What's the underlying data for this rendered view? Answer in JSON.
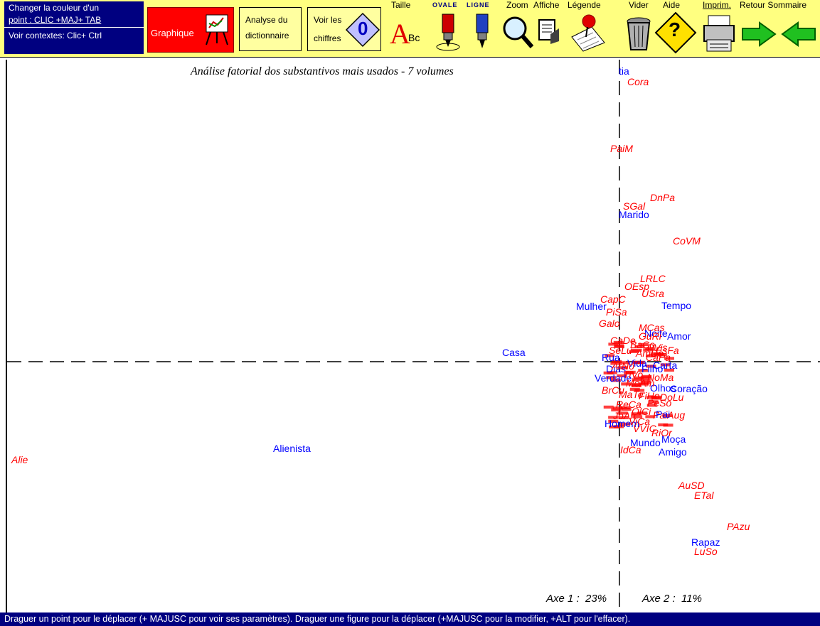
{
  "info_box": {
    "line1": "Changer la couleur d'un",
    "line2": "point : CLIC +MAJ+ TAB",
    "line3": "Voir contextes: Clic+ Ctrl"
  },
  "toolbar": {
    "graphique": "Graphique",
    "analyse_line1": "Analyse du",
    "analyse_line2": "dictionnaire",
    "voir_line1": "Voir les",
    "voir_line2": "chiffres",
    "voir_icon_text": "0",
    "taille": "Taille",
    "taille_icon_a": "A",
    "taille_icon_bc": "Bc",
    "ovale": "OVALE",
    "ligne": "LIGNE",
    "zoom": "Zoom",
    "affiche": "Affiche",
    "legende": "Légende",
    "vider": "Vider",
    "aide": "Aide",
    "aide_icon_text": "?",
    "imprim": "Imprim.",
    "retour_sommaire": "Retour Sommaire"
  },
  "plot": {
    "title": "Análise fatorial dos substantivos mais usados - 7 volumes",
    "axe1": "Axe 1 :  23%",
    "axe2": "Axe 2 :  11%"
  },
  "colors": {
    "red": "#ff0000",
    "blue": "#0000ff",
    "navy": "#000080",
    "toolbar": "#ffff80"
  },
  "status": "Draguer un point pour le déplacer (+ MAJUSC  pour voir ses paramètres). Draguer une figure pour la déplacer (+MAJUSC pour la modifier, +ALT pour l'effacer).",
  "labels": [
    {
      "t": "tia",
      "c": "blue"
    },
    {
      "t": "Cora",
      "c": "red"
    },
    {
      "t": "PaiM",
      "c": "red"
    },
    {
      "t": "DnPa",
      "c": "red"
    },
    {
      "t": "SGal",
      "c": "red"
    },
    {
      "t": "Marido",
      "c": "blue"
    },
    {
      "t": "CoVM",
      "c": "red"
    },
    {
      "t": "LRLC",
      "c": "red"
    },
    {
      "t": "OEsp",
      "c": "red"
    },
    {
      "t": "USra",
      "c": "red"
    },
    {
      "t": "CapC",
      "c": "red"
    },
    {
      "t": "Mulher",
      "c": "blue"
    },
    {
      "t": "Tempo",
      "c": "blue"
    },
    {
      "t": "PiSa",
      "c": "red"
    },
    {
      "t": "Galo",
      "c": "red"
    },
    {
      "t": "MCas",
      "c": "red"
    },
    {
      "t": "Noite",
      "c": "blue"
    },
    {
      "t": "Amor",
      "c": "blue"
    },
    {
      "t": "PVis",
      "c": "red"
    },
    {
      "t": "Casa",
      "c": "blue"
    },
    {
      "t": "Rua",
      "c": "blue"
    },
    {
      "t": "Carta",
      "c": "blue"
    },
    {
      "t": "Verdade",
      "c": "blue"
    },
    {
      "t": "Olhos",
      "c": "blue"
    },
    {
      "t": "Coração",
      "c": "blue"
    },
    {
      "t": "PaiAug",
      "c": "red"
    },
    {
      "t": "Homem",
      "c": "blue"
    },
    {
      "t": "Mundo",
      "c": "blue"
    },
    {
      "t": "Moça",
      "c": "blue"
    },
    {
      "t": "Amigo",
      "c": "blue"
    },
    {
      "t": "IdCa",
      "c": "red"
    },
    {
      "t": "Alienista",
      "c": "blue"
    },
    {
      "t": "Alie",
      "c": "red"
    },
    {
      "t": "AuSD",
      "c": "red"
    },
    {
      "t": "ETal",
      "c": "red"
    },
    {
      "t": "PAzu",
      "c": "red"
    },
    {
      "t": "Rapaz",
      "c": "blue"
    },
    {
      "t": "LuSo",
      "c": "red"
    },
    {
      "t": "Dias",
      "c": "blue"
    },
    {
      "t": "Vida",
      "c": "blue"
    },
    {
      "t": "Pai",
      "c": "blue"
    },
    {
      "t": "BrCu",
      "c": "red"
    },
    {
      "t": "VVIC",
      "c": "red"
    },
    {
      "t": "RiOr",
      "c": "red"
    },
    {
      "t": "CaDe",
      "c": "red"
    },
    {
      "t": "Filho",
      "c": "blue"
    },
    {
      "t": "MeAm",
      "c": "red"
    },
    {
      "t": "FiHo",
      "c": "red"
    },
    {
      "t": "ReCa",
      "c": "red"
    },
    {
      "t": "OlCi",
      "c": "red"
    },
    {
      "t": "NoMa",
      "c": "red"
    },
    {
      "t": "SeLu",
      "c": "red"
    },
    {
      "t": "AmDo",
      "c": "red"
    },
    {
      "t": "TiVo",
      "c": "red"
    },
    {
      "t": "CaPa",
      "c": "red"
    },
    {
      "t": "JoAn",
      "c": "red"
    },
    {
      "t": "ViCa",
      "c": "red"
    },
    {
      "t": "PeSo",
      "c": "red"
    },
    {
      "t": "MaTe",
      "c": "red"
    },
    {
      "t": "DoLu",
      "c": "red"
    },
    {
      "t": "ArNo",
      "c": "red"
    },
    {
      "t": "BaCo",
      "c": "red"
    },
    {
      "t": "EsFa",
      "c": "red"
    },
    {
      "t": "GuRi",
      "c": "red"
    }
  ]
}
